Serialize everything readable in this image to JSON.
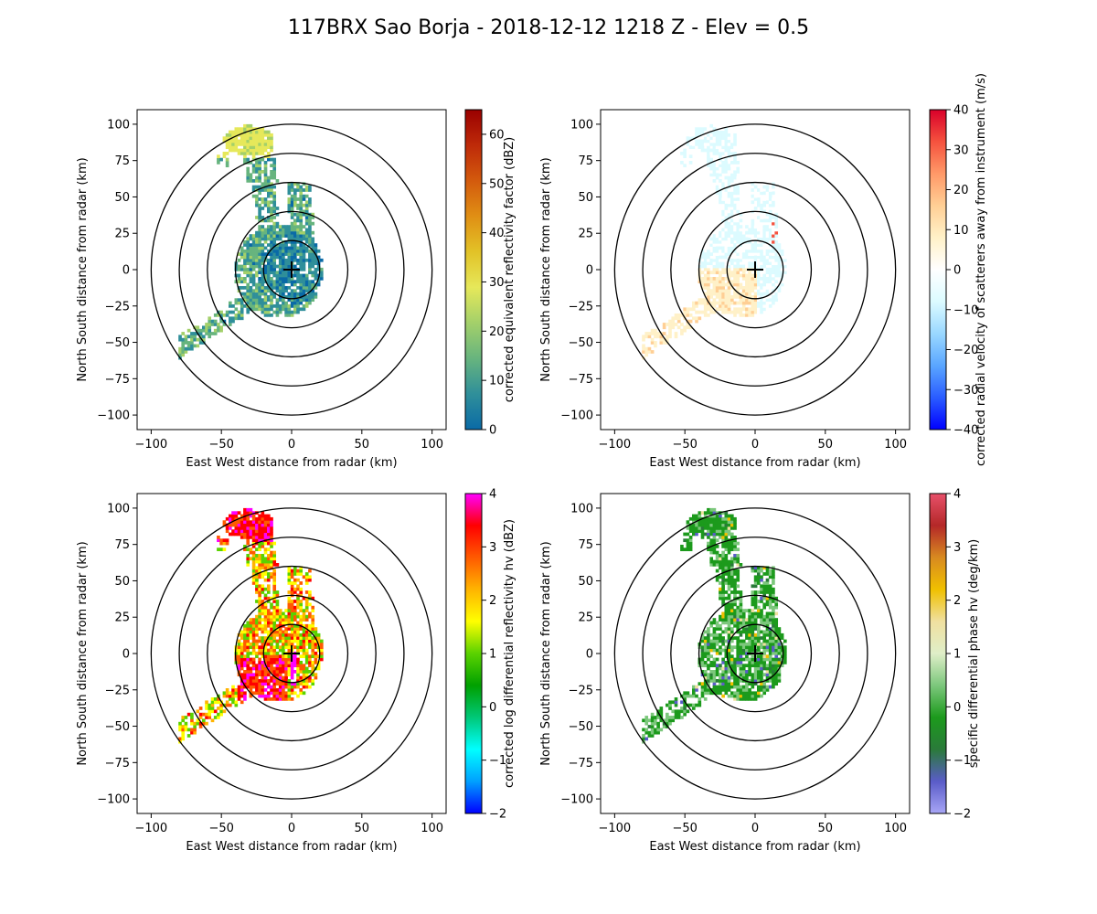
{
  "title": "117BRX Sao Borja - 2018-12-12 1218 Z -  Elev = 0.5",
  "chart_data": [
    {
      "type": "heatmap",
      "panel": "top-left",
      "xlabel": "East West distance from radar (km)",
      "ylabel": "North South distance from radar (km)",
      "xlim": [
        -110,
        110
      ],
      "ylim": [
        -110,
        110
      ],
      "xticks": [
        -100,
        -50,
        0,
        50,
        100
      ],
      "yticks": [
        -100,
        -75,
        -50,
        -25,
        0,
        25,
        50,
        75,
        100
      ],
      "range_rings_km": [
        20,
        40,
        60,
        80,
        100
      ],
      "colorbar": {
        "label": "corrected equivalent reflectivity factor (dBZ)",
        "vmin": 0,
        "vmax": 65,
        "ticks": [
          0,
          10,
          20,
          30,
          40,
          50,
          60
        ],
        "colors": [
          "#0a6aa6",
          "#2f8f9a",
          "#67b47e",
          "#a3d06a",
          "#e6e85a",
          "#e2c227",
          "#e08f14",
          "#d35a0d",
          "#be2a09",
          "#9a0000"
        ]
      },
      "echo": "reflectivity"
    },
    {
      "type": "heatmap",
      "panel": "top-right",
      "xlabel": "East West distance from radar (km)",
      "ylabel": "North South distance from radar (km)",
      "xlim": [
        -110,
        110
      ],
      "ylim": [
        -110,
        110
      ],
      "xticks": [
        -100,
        -50,
        0,
        50,
        100
      ],
      "yticks": [
        -100,
        -75,
        -50,
        -25,
        0,
        25,
        50,
        75,
        100
      ],
      "range_rings_km": [
        20,
        40,
        60,
        80,
        100
      ],
      "colorbar": {
        "label": "corrected radial velocity of scatterers away from instrument (m/s)",
        "vmin": -40,
        "vmax": 40,
        "ticks": [
          -40,
          -30,
          -20,
          -10,
          0,
          10,
          20,
          30,
          40
        ],
        "colors": [
          "#0000ff",
          "#2a5cff",
          "#5aa6ff",
          "#9ad8ff",
          "#dcfbff",
          "#ffffff",
          "#fff1c8",
          "#ffcf95",
          "#ff9968",
          "#f5523e",
          "#d9002a"
        ]
      },
      "echo": "velocity"
    },
    {
      "type": "heatmap",
      "panel": "bottom-left",
      "xlabel": "East West distance from radar (km)",
      "ylabel": "North South distance from radar (km)",
      "xlim": [
        -110,
        110
      ],
      "ylim": [
        -110,
        110
      ],
      "xticks": [
        -100,
        -50,
        0,
        50,
        100
      ],
      "yticks": [
        -100,
        -75,
        -50,
        -25,
        0,
        25,
        50,
        75,
        100
      ],
      "range_rings_km": [
        20,
        40,
        60,
        80,
        100
      ],
      "colorbar": {
        "label": "corrected log differential reflectivity hv (dBZ)",
        "vmin": -2,
        "vmax": 4,
        "ticks": [
          -2,
          -1,
          0,
          1,
          2,
          3,
          4
        ],
        "colors": [
          "#0000ff",
          "#00a0ff",
          "#00ffff",
          "#00c878",
          "#00a000",
          "#5ad200",
          "#ffff00",
          "#ffb400",
          "#ff5a00",
          "#ff0000",
          "#ff00ff"
        ]
      },
      "echo": "zdr"
    },
    {
      "type": "heatmap",
      "panel": "bottom-right",
      "xlabel": "East West distance from radar (km)",
      "ylabel": "North South distance from radar (km)",
      "xlim": [
        -110,
        110
      ],
      "ylim": [
        -110,
        110
      ],
      "xticks": [
        -100,
        -50,
        0,
        50,
        100
      ],
      "yticks": [
        -100,
        -75,
        -50,
        -25,
        0,
        25,
        50,
        75,
        100
      ],
      "range_rings_km": [
        20,
        40,
        60,
        80,
        100
      ],
      "colorbar": {
        "label": "specific differential phase hv (deg/km)",
        "vmin": -2,
        "vmax": 4,
        "ticks": [
          -2,
          -1,
          0,
          1,
          2,
          3,
          4
        ],
        "colors": [
          "#a8a6f6",
          "#5a5cc8",
          "#2a7a3a",
          "#1c9a1c",
          "#7cc77c",
          "#dfeec8",
          "#f0e0a0",
          "#f0c000",
          "#d88a20",
          "#b42828",
          "#e8506a"
        ]
      },
      "echo": "kdp"
    }
  ]
}
